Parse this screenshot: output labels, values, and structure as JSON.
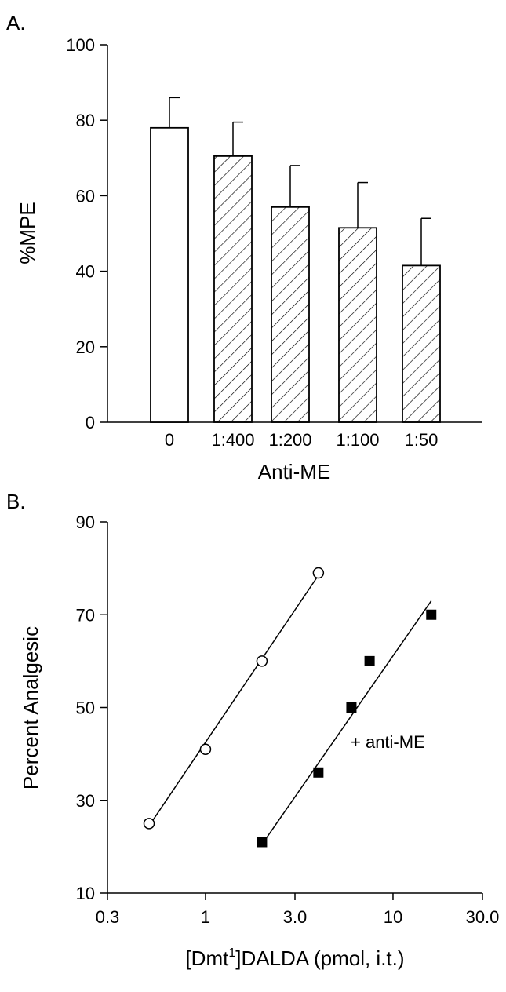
{
  "chart_data": [
    {
      "panel": "A.",
      "type": "bar",
      "title": "",
      "xlabel": "Anti-ME",
      "ylabel": "%MPE",
      "ylim": [
        0,
        100
      ],
      "yticks": [
        0,
        20,
        40,
        60,
        80,
        100
      ],
      "categories": [
        "0",
        "1:400",
        "1:200",
        "1:100",
        "1:50"
      ],
      "values": [
        78,
        70.5,
        57,
        51.5,
        41.5
      ],
      "errors": [
        8,
        9,
        11,
        12,
        12.5
      ],
      "fills": [
        "open",
        "hatched",
        "hatched",
        "hatched",
        "hatched"
      ],
      "grid": false
    },
    {
      "panel": "B.",
      "type": "scatter",
      "title": "",
      "xlabel": "[Dmt",
      "xlabel_sup": "1",
      "xlabel_rest": "]DALDA (pmol, i.t.)",
      "ylabel": "Percent Analgesic",
      "xscale": "log",
      "xlim": [
        0.3,
        30
      ],
      "xticks": [
        0.3,
        1,
        3,
        10,
        30
      ],
      "xtick_labels": [
        "0.3",
        "1",
        "3.0",
        "10",
        "30.0"
      ],
      "ylim": [
        10,
        90
      ],
      "yticks": [
        10,
        30,
        50,
        70,
        90
      ],
      "grid": false,
      "series": [
        {
          "marker": "open-circle",
          "x": [
            0.5,
            1.0,
            2.0,
            4.0
          ],
          "y": [
            25,
            41,
            60,
            79
          ],
          "fit_x": [
            0.5,
            4.0
          ],
          "fit_y": [
            24.5,
            78.5
          ]
        },
        {
          "marker": "filled-square",
          "annotation": "+ anti-ME",
          "x": [
            2.0,
            4.0,
            6.0,
            7.5,
            16.0
          ],
          "y": [
            21,
            36,
            50,
            60,
            70
          ],
          "fit_x": [
            2.0,
            16.0
          ],
          "fit_y": [
            20.5,
            73
          ]
        }
      ]
    }
  ]
}
